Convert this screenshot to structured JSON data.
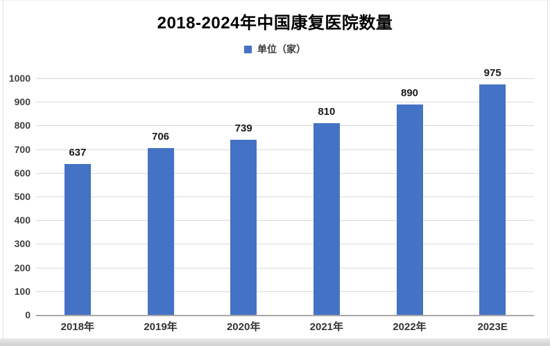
{
  "chart": {
    "title": "2018-2024年中国康复医院数量",
    "legend_label": "单位（家）"
  },
  "chart_data": {
    "type": "bar",
    "title": "2018-2024年中国康复医院数量",
    "legend": [
      "单位（家）"
    ],
    "legend_position": "top-center",
    "categories": [
      "2018年",
      "2019年",
      "2020年",
      "2021年",
      "2022年",
      "2023E"
    ],
    "values": [
      637,
      706,
      739,
      810,
      890,
      975
    ],
    "xlabel": "",
    "ylabel": "",
    "ylim": [
      0,
      1000
    ],
    "ytick_step": 100,
    "grid": "horizontal",
    "bar_color": "#4472C4",
    "grid_color": "#d9d9d9",
    "axis_color": "#a8a8a8",
    "label_color": "#1a1a1a"
  }
}
